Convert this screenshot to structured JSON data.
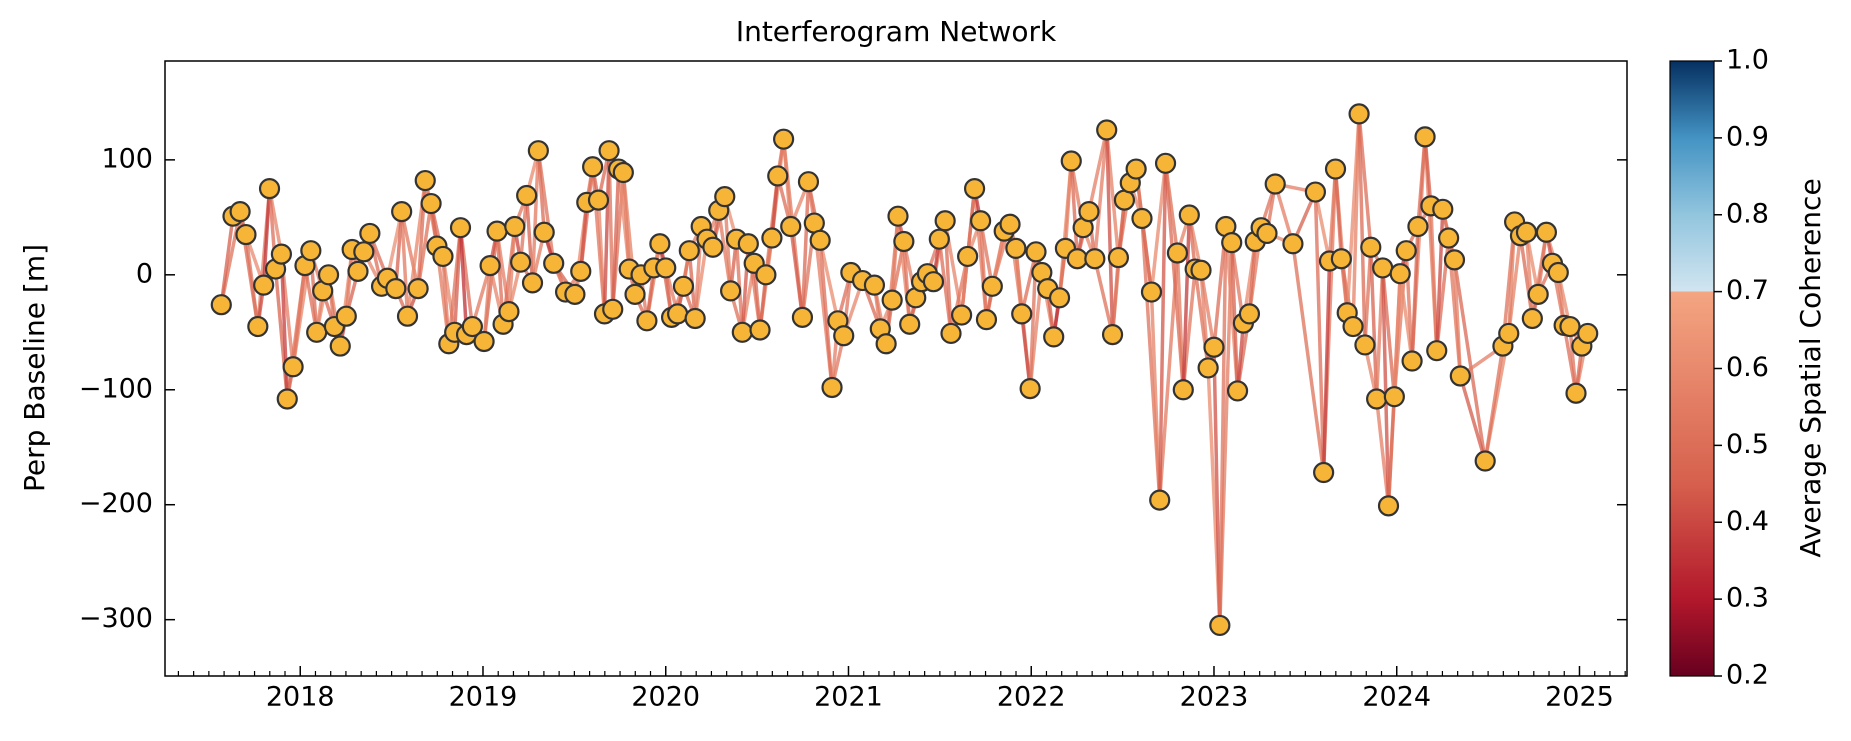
{
  "chart_data": {
    "type": "network",
    "title": "Interferogram Network",
    "y_label": "Perp Baseline [m]",
    "x": [
      2017.568,
      2017.632,
      2017.671,
      2017.703,
      2017.768,
      2017.8,
      2017.832,
      2017.865,
      2017.897,
      2017.929,
      2017.961,
      2018.026,
      2018.058,
      2018.09,
      2018.123,
      2018.155,
      2018.187,
      2018.219,
      2018.252,
      2018.284,
      2018.316,
      2018.348,
      2018.381,
      2018.445,
      2018.477,
      2018.523,
      2018.555,
      2018.587,
      2018.645,
      2018.684,
      2018.716,
      2018.748,
      2018.781,
      2018.813,
      2018.845,
      2018.877,
      2018.91,
      2018.942,
      2019.006,
      2019.039,
      2019.077,
      2019.11,
      2019.142,
      2019.174,
      2019.206,
      2019.239,
      2019.271,
      2019.303,
      2019.335,
      2019.387,
      2019.452,
      2019.503,
      2019.535,
      2019.568,
      2019.6,
      2019.632,
      2019.665,
      2019.69,
      2019.71,
      2019.742,
      2019.768,
      2019.8,
      2019.832,
      2019.865,
      2019.897,
      2019.935,
      2019.968,
      2020.0,
      2020.032,
      2020.065,
      2020.097,
      2020.129,
      2020.161,
      2020.194,
      2020.226,
      2020.258,
      2020.29,
      2020.323,
      2020.355,
      2020.387,
      2020.419,
      2020.452,
      2020.484,
      2020.516,
      2020.548,
      2020.581,
      2020.613,
      2020.645,
      2020.684,
      2020.748,
      2020.781,
      2020.813,
      2020.845,
      2020.91,
      2020.942,
      2020.974,
      2021.013,
      2021.077,
      2021.142,
      2021.174,
      2021.206,
      2021.239,
      2021.271,
      2021.303,
      2021.335,
      2021.368,
      2021.4,
      2021.432,
      2021.465,
      2021.497,
      2021.529,
      2021.561,
      2021.619,
      2021.652,
      2021.69,
      2021.723,
      2021.755,
      2021.787,
      2021.852,
      2021.884,
      2021.916,
      2021.948,
      2021.994,
      2022.026,
      2022.058,
      2022.09,
      2022.123,
      2022.155,
      2022.187,
      2022.219,
      2022.252,
      2022.284,
      2022.316,
      2022.348,
      2022.413,
      2022.445,
      2022.477,
      2022.51,
      2022.542,
      2022.574,
      2022.606,
      2022.658,
      2022.703,
      2022.735,
      2022.8,
      2022.832,
      2022.865,
      2022.897,
      2022.929,
      2022.968,
      2023.0,
      2023.032,
      2023.065,
      2023.097,
      2023.129,
      2023.161,
      2023.194,
      2023.226,
      2023.258,
      2023.29,
      2023.335,
      2023.432,
      2023.555,
      2023.6,
      2023.632,
      2023.665,
      2023.697,
      2023.729,
      2023.761,
      2023.794,
      2023.826,
      2023.858,
      2023.89,
      2023.923,
      2023.955,
      2023.987,
      2024.019,
      2024.052,
      2024.084,
      2024.116,
      2024.155,
      2024.187,
      2024.219,
      2024.252,
      2024.284,
      2024.316,
      2024.348,
      2024.484,
      2024.581,
      2024.613,
      2024.645,
      2024.677,
      2024.71,
      2024.742,
      2024.774,
      2024.819,
      2024.852,
      2024.884,
      2024.916,
      2024.948,
      2024.981,
      2025.013,
      2025.045
    ],
    "values": [
      -26,
      51,
      55,
      35,
      -45,
      -9,
      75,
      5,
      18,
      -108,
      -80,
      8,
      21,
      -50,
      -14,
      0,
      -45,
      -62,
      -36,
      22,
      3,
      20,
      36,
      -10,
      -3,
      -12,
      55,
      -36,
      -12,
      82,
      62,
      25,
      16,
      -60,
      -50,
      41,
      -52,
      -45,
      -58,
      8,
      38,
      -43,
      -32,
      42,
      11,
      69,
      -7,
      108,
      37,
      10,
      -15,
      -17,
      3,
      63,
      94,
      65,
      -34,
      108,
      -30,
      92,
      89,
      5,
      -17,
      0,
      -40,
      6,
      27,
      6,
      -37,
      -34,
      -10,
      21,
      -38,
      42,
      31,
      24,
      56,
      68,
      -14,
      31,
      -50,
      27,
      10,
      -48,
      0,
      32,
      86,
      118,
      42,
      -37,
      81,
      45,
      30,
      -98,
      -40,
      -53,
      2,
      -5,
      -9,
      -47,
      -60,
      -22,
      51,
      29,
      -43,
      -20,
      -6,
      1,
      -6,
      31,
      47,
      -51,
      -35,
      16,
      75,
      47,
      -39,
      -10,
      38,
      44,
      23,
      -34,
      -99,
      20,
      2,
      -12,
      -54,
      -20,
      23,
      99,
      14,
      41,
      55,
      14,
      126,
      -52,
      15,
      65,
      80,
      92,
      49,
      -15,
      -196,
      97,
      19,
      -100,
      52,
      5,
      4,
      -81,
      -63,
      -305,
      42,
      28,
      -101,
      -42,
      -34,
      29,
      41,
      36,
      79,
      27,
      72,
      -172,
      12,
      92,
      14,
      -33,
      -45,
      140,
      -61,
      24,
      -108,
      6,
      -201,
      -106,
      1,
      21,
      -75,
      42,
      120,
      60,
      -66,
      57,
      32,
      13,
      -88,
      -162,
      -62,
      -51,
      46,
      34,
      37,
      -38,
      -17,
      37,
      10,
      2,
      -44,
      -45,
      -103,
      -62,
      -51
    ],
    "coherence": [
      0.45,
      0.32,
      0.48,
      0.52,
      0.41,
      0.36,
      0.5,
      0.55,
      0.38,
      0.47,
      0.53,
      0.44,
      0.49,
      0.58,
      0.42,
      0.51,
      0.46,
      0.39,
      0.55,
      0.48,
      0.43,
      0.57,
      0.5,
      0.37,
      0.52,
      0.46,
      0.54,
      0.41,
      0.49,
      0.56,
      0.47,
      0.4,
      0.53,
      0.58,
      0.44,
      0.35,
      0.51,
      0.48,
      0.55,
      0.42,
      0.5,
      0.46,
      0.57,
      0.39,
      0.52,
      0.45,
      0.54,
      0.49,
      0.36,
      0.53,
      0.48,
      0.56,
      0.43,
      0.51,
      0.47,
      0.58,
      0.4,
      0.52,
      0.45,
      0.34,
      0.55,
      0.49,
      0.42,
      0.53,
      0.46,
      0.57,
      0.38,
      0.5,
      0.54,
      0.44,
      0.51,
      0.47,
      0.56,
      0.41,
      0.53,
      0.48,
      0.37,
      0.55,
      0.45,
      0.52,
      0.43,
      0.58,
      0.49,
      0.46,
      0.54,
      0.4,
      0.51,
      0.57,
      0.44,
      0.48,
      0.53,
      0.39,
      0.5,
      0.56,
      0.45,
      0.52,
      0.47,
      0.35,
      0.54,
      0.49,
      0.46,
      0.55,
      0.41,
      0.52,
      0.48,
      0.57,
      0.43,
      0.5,
      0.38,
      0.54,
      0.49,
      0.44,
      0.56,
      0.51,
      0.36,
      0.53,
      0.47,
      0.58,
      0.42,
      0.5,
      0.55,
      0.4,
      0.52,
      0.47,
      0.54,
      0.45,
      0.33,
      0.51,
      0.57,
      0.48,
      0.44,
      0.53,
      0.49,
      0.56,
      0.41,
      0.5,
      0.46,
      0.55,
      0.39,
      0.52,
      0.48,
      0.57,
      0.43,
      0.51,
      0.54,
      0.37,
      0.49,
      0.45,
      0.56,
      0.5,
      0.42,
      0.52,
      0.58,
      0.46,
      0.4,
      0.53,
      0.48,
      0.55,
      0.44,
      0.51,
      0.56,
      0.45,
      0.5,
      0.38,
      0.54,
      0.47,
      0.52,
      0.43,
      0.57,
      0.49,
      0.51,
      0.46,
      0.55,
      0.42,
      0.49,
      0.58,
      0.36,
      0.53,
      0.47,
      0.5,
      0.45,
      0.54,
      0.4,
      0.52,
      0.48,
      0.56,
      0.44,
      0.51,
      0.39,
      0.55,
      0.5,
      0.43,
      0.57,
      0.47,
      0.53,
      0.41,
      0.49,
      0.55,
      0.46,
      0.52,
      0.48,
      0.54
    ],
    "coherence_skip": [
      0.52,
      0.57,
      0.49,
      0.6,
      0.55,
      0.51,
      0.58,
      0.47,
      0.56,
      0.53,
      0.59,
      0.5,
      0.54,
      0.61,
      0.48,
      0.57,
      0.52,
      0.6,
      0.46,
      0.55,
      0.53,
      0.58,
      0.5,
      0.56,
      0.62,
      0.49,
      0.54,
      0.59,
      0.51,
      0.57,
      0.48,
      0.55,
      0.6,
      0.52,
      0.57,
      0.5,
      0.61,
      0.54,
      0.47,
      0.58,
      0.56,
      0.51,
      0.59,
      0.53,
      0.49,
      0.6,
      0.55,
      0.52,
      0.58,
      0.46,
      0.54,
      0.61,
      0.5,
      0.57,
      0.53,
      0.48,
      0.59,
      0.55,
      0.51,
      0.6,
      0.57,
      0.52,
      0.49,
      0.58,
      0.54,
      0.61,
      0.47,
      0.56,
      0.53,
      0.59,
      0.5,
      0.55,
      0.6,
      0.52,
      0.57,
      0.48,
      0.54,
      0.62,
      0.51,
      0.56,
      0.59,
      0.53,
      0.49,
      0.57,
      0.55,
      0.6,
      0.5,
      0.54,
      0.58,
      0.52,
      0.47,
      0.56,
      0.61,
      0.53,
      0.5,
      0.58,
      0.55,
      0.49,
      0.57,
      0.6,
      0.54,
      0.51,
      0.59,
      0.56,
      0.48,
      0.55,
      0.61,
      0.52,
      0.57,
      0.5,
      0.58,
      0.53,
      0.47,
      0.6,
      0.55,
      0.52,
      0.59,
      0.54,
      0.49,
      0.56,
      0.61,
      0.5,
      0.57,
      0.53,
      0.58,
      0.48,
      0.55,
      0.6,
      0.52,
      0.54,
      0.49,
      0.59,
      0.56,
      0.51,
      0.57,
      0.62,
      0.53,
      0.5,
      0.58,
      0.55,
      0.52,
      0.6,
      0.54,
      0.48,
      0.57,
      0.53,
      0.59,
      0.51,
      0.56,
      0.61,
      0.5,
      0.55,
      0.58,
      0.53,
      0.49,
      0.6,
      0.54,
      0.57,
      0.52,
      0.59,
      0.56,
      0.51,
      0.61,
      0.54,
      0.48,
      0.57,
      0.53,
      0.6,
      0.55,
      0.5,
      0.58,
      0.52,
      0.56,
      0.49,
      0.59,
      0.54,
      0.61,
      0.51,
      0.57,
      0.53,
      0.55,
      0.6,
      0.5,
      0.58,
      0.53,
      0.48,
      0.56,
      0.59,
      0.52,
      0.57,
      0.54,
      0.49,
      0.61,
      0.55,
      0.51,
      0.58,
      0.53,
      0.6,
      0.5,
      0.56,
      0.57
    ],
    "xlim": [
      2017.26,
      2025.26
    ],
    "ylim": [
      -349,
      186
    ],
    "xticks": [
      2018,
      2019,
      2020,
      2021,
      2022,
      2023,
      2024,
      2025
    ],
    "yticks": [
      {
        "value": -300,
        "label": "−300"
      },
      {
        "value": -200,
        "label": "−200"
      },
      {
        "value": -100,
        "label": "−100"
      },
      0,
      100
    ],
    "colorbar": {
      "label": "Average Spatial Coherence",
      "clim": [
        0.2,
        1.0
      ],
      "ticks": [
        0.2,
        0.3,
        0.4,
        0.5,
        0.6,
        0.7,
        0.8,
        0.9,
        {
          "value": 1,
          "label": "1.0"
        }
      ]
    }
  }
}
